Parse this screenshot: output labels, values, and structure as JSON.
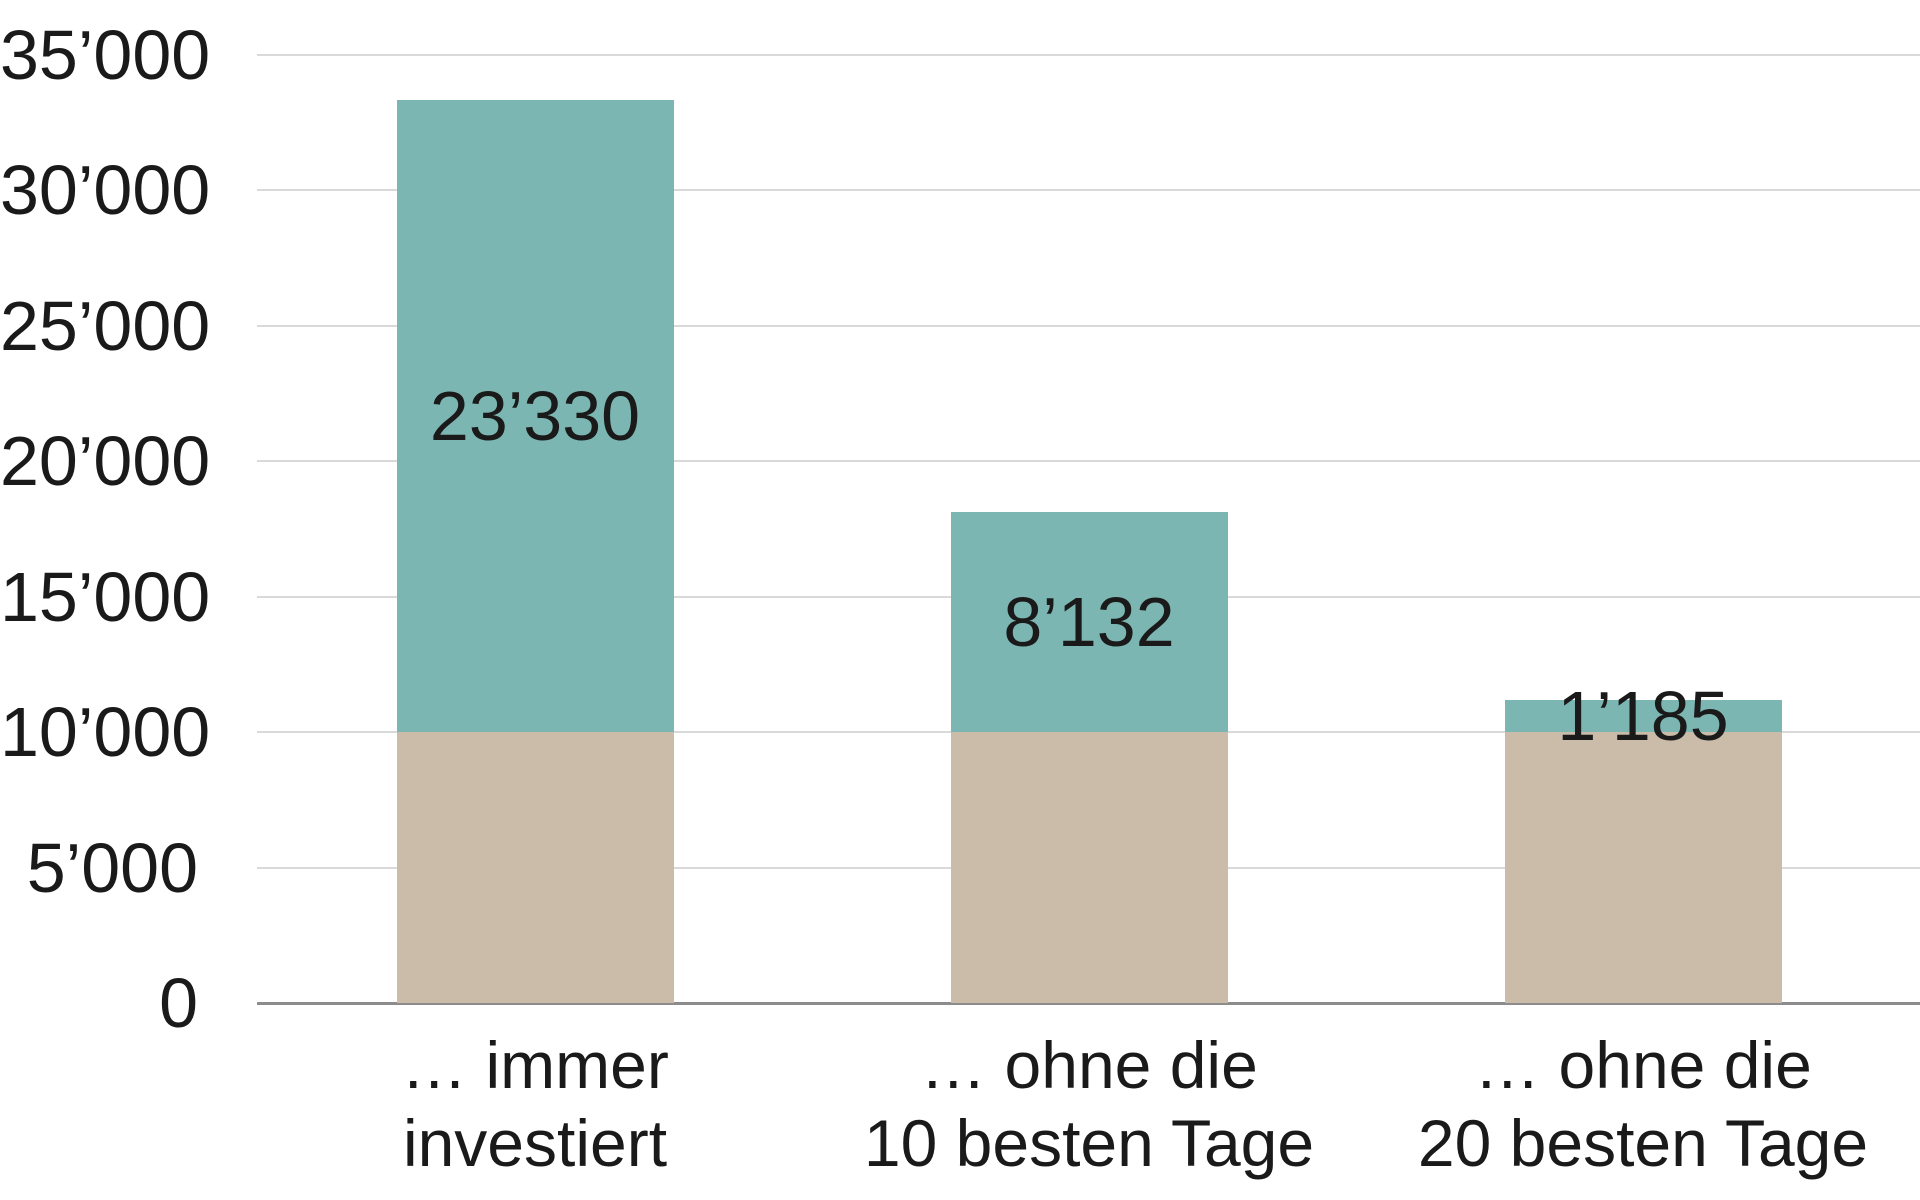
{
  "chart_data": {
    "type": "bar",
    "stacked": true,
    "categories": [
      {
        "lines": [
          "… immer",
          "investiert"
        ]
      },
      {
        "lines": [
          "… ohne die",
          "10 besten Tage"
        ]
      },
      {
        "lines": [
          "… ohne die",
          "20 besten Tage"
        ]
      }
    ],
    "series": [
      {
        "name": "base-investment",
        "color": "#cbbba9",
        "values": [
          10000,
          10000,
          10000
        ],
        "labels": [
          "",
          "",
          ""
        ]
      },
      {
        "name": "gain",
        "color": "#7cb6b2",
        "values": [
          23330,
          8132,
          1185
        ],
        "labels": [
          "23’330",
          "8’132",
          "1’185"
        ]
      }
    ],
    "totals": [
      33330,
      18132,
      11185
    ],
    "y_axis": {
      "min": 0,
      "max": 35000,
      "step": 5000,
      "tick_labels": [
        "0",
        "5’000",
        "10’000",
        "15’000",
        "20’000",
        "25’000",
        "30’000",
        "35’000"
      ]
    },
    "grid": true,
    "legend": "none",
    "title": "",
    "colors": {
      "gridline": "#d9d9d9",
      "axis_line": "#8c8c8c",
      "text": "#1a1a1a"
    }
  }
}
